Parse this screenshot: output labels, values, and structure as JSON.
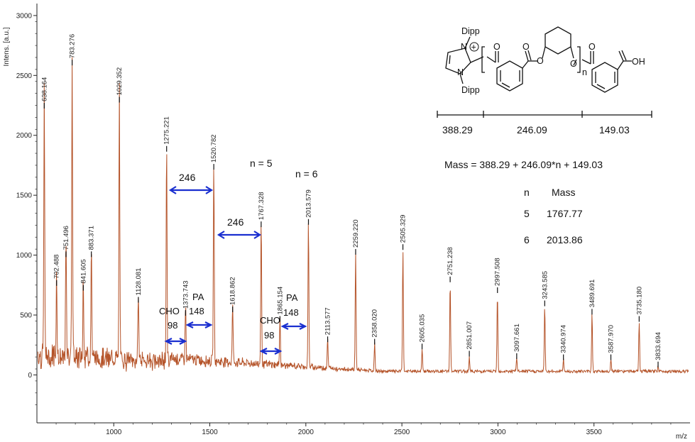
{
  "chart_data": {
    "type": "line",
    "ylabel": "Intens. [a.u.]",
    "xlabel": "m/z",
    "xlim": [
      600,
      4000
    ],
    "ylim": [
      -400,
      3100
    ],
    "xticks": [
      1000,
      1500,
      2000,
      2500,
      3000,
      3500
    ],
    "yticks": [
      0,
      500,
      1000,
      1500,
      2000,
      2500,
      3000
    ],
    "series_color": "#b5542a",
    "peaks": [
      {
        "x": 638.164,
        "y": 2200,
        "label": "638.164"
      },
      {
        "x": 702.488,
        "y": 720,
        "label": "702.488"
      },
      {
        "x": 751.496,
        "y": 960,
        "label": "751.496"
      },
      {
        "x": 783.276,
        "y": 2560,
        "label": "783.276"
      },
      {
        "x": 841.605,
        "y": 680,
        "label": "841.605"
      },
      {
        "x": 883.371,
        "y": 960,
        "label": "883.371"
      },
      {
        "x": 1029.352,
        "y": 2250,
        "label": "1029.352"
      },
      {
        "x": 1128.081,
        "y": 580,
        "label": "1128.081"
      },
      {
        "x": 1275.221,
        "y": 1840,
        "label": "1275.221"
      },
      {
        "x": 1373.743,
        "y": 470,
        "label": "1373.743"
      },
      {
        "x": 1520.782,
        "y": 1690,
        "label": "1520.782"
      },
      {
        "x": 1618.862,
        "y": 500,
        "label": "1618.862"
      },
      {
        "x": 1767.328,
        "y": 1210,
        "label": "1767.328"
      },
      {
        "x": 1865.154,
        "y": 420,
        "label": "1865.154"
      },
      {
        "x": 2013.579,
        "y": 1230,
        "label": "2013.579"
      },
      {
        "x": 2113.577,
        "y": 250,
        "label": "2113.577"
      },
      {
        "x": 2259.22,
        "y": 980,
        "label": "2259.220"
      },
      {
        "x": 2358.02,
        "y": 230,
        "label": "2358.020"
      },
      {
        "x": 2505.329,
        "y": 1020,
        "label": "2505.329"
      },
      {
        "x": 2605.035,
        "y": 190,
        "label": "2605.035"
      },
      {
        "x": 2751.238,
        "y": 750,
        "label": "2751.238"
      },
      {
        "x": 2851.007,
        "y": 130,
        "label": "2851.007"
      },
      {
        "x": 2997.508,
        "y": 660,
        "label": "2997.508"
      },
      {
        "x": 3097.661,
        "y": 110,
        "label": "3097.661"
      },
      {
        "x": 3243.585,
        "y": 550,
        "label": "3243.585"
      },
      {
        "x": 3340.974,
        "y": 100,
        "label": "3340.974"
      },
      {
        "x": 3489.691,
        "y": 480,
        "label": "3489.691"
      },
      {
        "x": 3587.97,
        "y": 100,
        "label": "3587.970"
      },
      {
        "x": 3735.18,
        "y": 420,
        "label": "3735.180"
      },
      {
        "x": 3833.694,
        "y": 40,
        "label": "3833.694"
      }
    ]
  },
  "annotations": {
    "gap1": "246",
    "gap2": "246",
    "cho1_top": "CHO",
    "cho1_bottom": "98",
    "pa1_top": "PA",
    "pa1_bottom": "148",
    "cho2_top": "CHO",
    "cho2_bottom": "98",
    "pa2_top": "PA",
    "pa2_bottom": "148",
    "n5": "n = 5",
    "n6": "n = 6"
  },
  "structure": {
    "dipp_top": "Dipp",
    "dipp_bottom": "Dipp",
    "n_top": "N",
    "n_bottom": "N",
    "plus": "+",
    "subscript_n": "n",
    "oh": "OH",
    "o_labels": [
      "O",
      "O",
      "O",
      "O",
      "O"
    ],
    "seg1": "388.29",
    "seg2": "246.09",
    "seg3": "149.03"
  },
  "formula": "Mass = 388.29 + 246.09*n + 149.03",
  "mass_table": {
    "header_n": "n",
    "header_mass": "Mass",
    "rows": [
      {
        "n": "5",
        "mass": "1767.77"
      },
      {
        "n": "6",
        "mass": "2013.86"
      }
    ]
  }
}
